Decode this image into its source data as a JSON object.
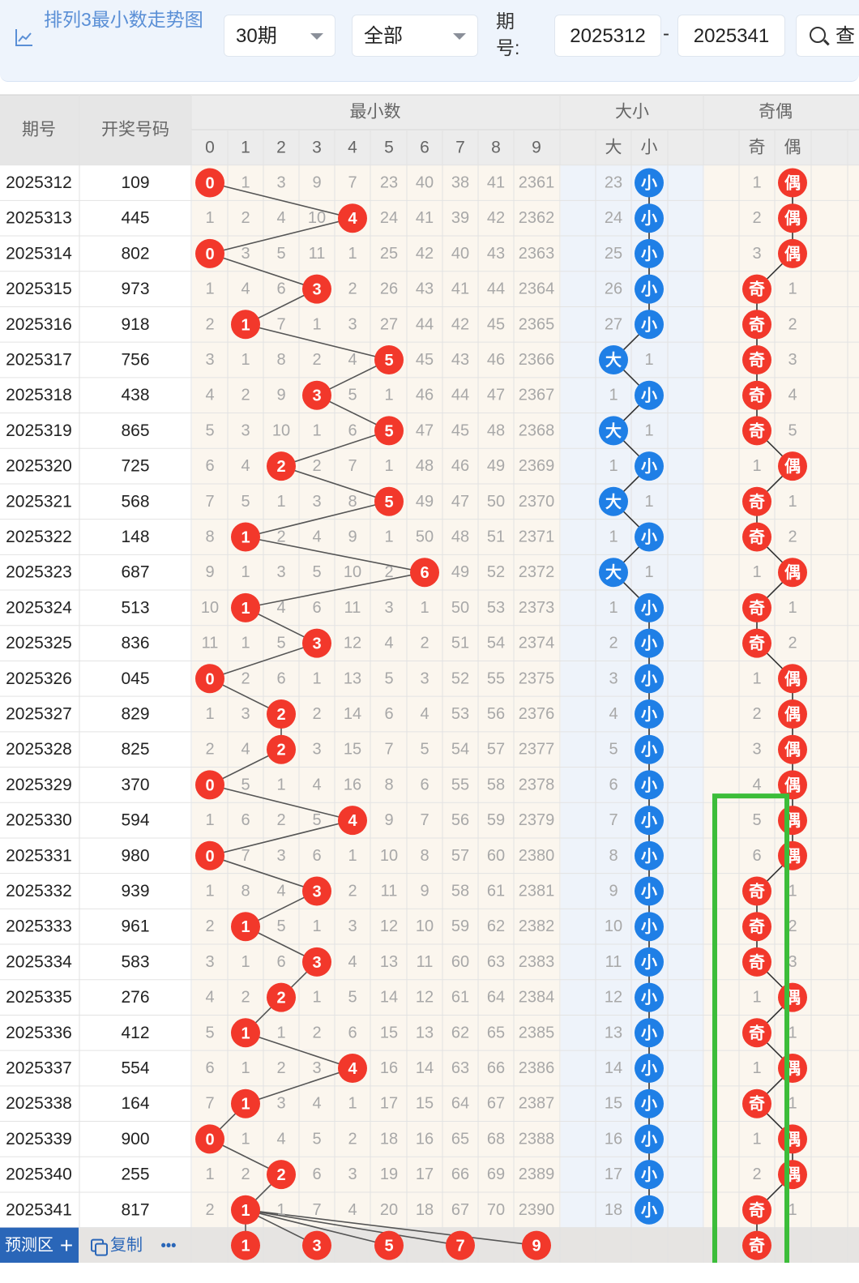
{
  "header": {
    "title": "排列3最小数走势图",
    "period_select": "30期",
    "scope_select": "全部",
    "issue_label": "期号:",
    "issue_from": "2025312",
    "issue_separator": "-",
    "issue_to": "2025341",
    "query_button": "查"
  },
  "table": {
    "col_issue": "期号",
    "col_draw": "开奖号码",
    "group_min": "最小数",
    "group_size": "大小",
    "group_parity": "奇偶",
    "min_digits": [
      "0",
      "1",
      "2",
      "3",
      "4",
      "5",
      "6",
      "7",
      "8",
      "9"
    ],
    "size_labels": [
      "大",
      "小"
    ],
    "parity_labels": [
      "奇",
      "偶"
    ]
  },
  "rows": [
    {
      "issue": "2025312",
      "draw": "109",
      "cells": [
        "0",
        "1",
        "3",
        "9",
        "7",
        "23",
        "40",
        "38",
        "41",
        "2361"
      ],
      "size": [
        "23",
        "小"
      ],
      "parity": [
        "1",
        "偶"
      ]
    },
    {
      "issue": "2025313",
      "draw": "445",
      "cells": [
        "1",
        "2",
        "4",
        "10",
        "4",
        "24",
        "41",
        "39",
        "42",
        "2362"
      ],
      "size": [
        "24",
        "小"
      ],
      "parity": [
        "2",
        "偶"
      ]
    },
    {
      "issue": "2025314",
      "draw": "802",
      "cells": [
        "0",
        "3",
        "5",
        "11",
        "1",
        "25",
        "42",
        "40",
        "43",
        "2363"
      ],
      "size": [
        "25",
        "小"
      ],
      "parity": [
        "3",
        "偶"
      ]
    },
    {
      "issue": "2025315",
      "draw": "973",
      "cells": [
        "1",
        "4",
        "6",
        "3",
        "2",
        "26",
        "43",
        "41",
        "44",
        "2364"
      ],
      "size": [
        "26",
        "小"
      ],
      "parity": [
        "奇",
        "1"
      ]
    },
    {
      "issue": "2025316",
      "draw": "918",
      "cells": [
        "2",
        "1",
        "7",
        "1",
        "3",
        "27",
        "44",
        "42",
        "45",
        "2365"
      ],
      "size": [
        "27",
        "小"
      ],
      "parity": [
        "奇",
        "2"
      ]
    },
    {
      "issue": "2025317",
      "draw": "756",
      "cells": [
        "3",
        "1",
        "8",
        "2",
        "4",
        "5",
        "45",
        "43",
        "46",
        "2366"
      ],
      "size": [
        "大",
        "1"
      ],
      "parity": [
        "奇",
        "3"
      ]
    },
    {
      "issue": "2025318",
      "draw": "438",
      "cells": [
        "4",
        "2",
        "9",
        "3",
        "5",
        "1",
        "46",
        "44",
        "47",
        "2367"
      ],
      "size": [
        "1",
        "小"
      ],
      "parity": [
        "奇",
        "4"
      ]
    },
    {
      "issue": "2025319",
      "draw": "865",
      "cells": [
        "5",
        "3",
        "10",
        "1",
        "6",
        "5",
        "47",
        "45",
        "48",
        "2368"
      ],
      "size": [
        "大",
        "1"
      ],
      "parity": [
        "奇",
        "5"
      ]
    },
    {
      "issue": "2025320",
      "draw": "725",
      "cells": [
        "6",
        "4",
        "2",
        "2",
        "7",
        "1",
        "48",
        "46",
        "49",
        "2369"
      ],
      "size": [
        "1",
        "小"
      ],
      "parity": [
        "1",
        "偶"
      ]
    },
    {
      "issue": "2025321",
      "draw": "568",
      "cells": [
        "7",
        "5",
        "1",
        "3",
        "8",
        "5",
        "49",
        "47",
        "50",
        "2370"
      ],
      "size": [
        "大",
        "1"
      ],
      "parity": [
        "奇",
        "1"
      ]
    },
    {
      "issue": "2025322",
      "draw": "148",
      "cells": [
        "8",
        "1",
        "2",
        "4",
        "9",
        "1",
        "50",
        "48",
        "51",
        "2371"
      ],
      "size": [
        "1",
        "小"
      ],
      "parity": [
        "奇",
        "2"
      ]
    },
    {
      "issue": "2025323",
      "draw": "687",
      "cells": [
        "9",
        "1",
        "3",
        "5",
        "10",
        "2",
        "6",
        "49",
        "52",
        "2372"
      ],
      "size": [
        "大",
        "1"
      ],
      "parity": [
        "1",
        "偶"
      ]
    },
    {
      "issue": "2025324",
      "draw": "513",
      "cells": [
        "10",
        "1",
        "4",
        "6",
        "11",
        "3",
        "1",
        "50",
        "53",
        "2373"
      ],
      "size": [
        "1",
        "小"
      ],
      "parity": [
        "奇",
        "1"
      ]
    },
    {
      "issue": "2025325",
      "draw": "836",
      "cells": [
        "11",
        "1",
        "5",
        "3",
        "12",
        "4",
        "2",
        "51",
        "54",
        "2374"
      ],
      "size": [
        "2",
        "小"
      ],
      "parity": [
        "奇",
        "2"
      ]
    },
    {
      "issue": "2025326",
      "draw": "045",
      "cells": [
        "0",
        "2",
        "6",
        "1",
        "13",
        "5",
        "3",
        "52",
        "55",
        "2375"
      ],
      "size": [
        "3",
        "小"
      ],
      "parity": [
        "1",
        "偶"
      ]
    },
    {
      "issue": "2025327",
      "draw": "829",
      "cells": [
        "1",
        "3",
        "2",
        "2",
        "14",
        "6",
        "4",
        "53",
        "56",
        "2376"
      ],
      "size": [
        "4",
        "小"
      ],
      "parity": [
        "2",
        "偶"
      ]
    },
    {
      "issue": "2025328",
      "draw": "825",
      "cells": [
        "2",
        "4",
        "2",
        "3",
        "15",
        "7",
        "5",
        "54",
        "57",
        "2377"
      ],
      "size": [
        "5",
        "小"
      ],
      "parity": [
        "3",
        "偶"
      ]
    },
    {
      "issue": "2025329",
      "draw": "370",
      "cells": [
        "0",
        "5",
        "1",
        "4",
        "16",
        "8",
        "6",
        "55",
        "58",
        "2378"
      ],
      "size": [
        "6",
        "小"
      ],
      "parity": [
        "4",
        "偶"
      ]
    },
    {
      "issue": "2025330",
      "draw": "594",
      "cells": [
        "1",
        "6",
        "2",
        "5",
        "4",
        "9",
        "7",
        "56",
        "59",
        "2379"
      ],
      "size": [
        "7",
        "小"
      ],
      "parity": [
        "5",
        "偶"
      ]
    },
    {
      "issue": "2025331",
      "draw": "980",
      "cells": [
        "0",
        "7",
        "3",
        "6",
        "1",
        "10",
        "8",
        "57",
        "60",
        "2380"
      ],
      "size": [
        "8",
        "小"
      ],
      "parity": [
        "6",
        "偶"
      ]
    },
    {
      "issue": "2025332",
      "draw": "939",
      "cells": [
        "1",
        "8",
        "4",
        "3",
        "2",
        "11",
        "9",
        "58",
        "61",
        "2381"
      ],
      "size": [
        "9",
        "小"
      ],
      "parity": [
        "奇",
        "1"
      ]
    },
    {
      "issue": "2025333",
      "draw": "961",
      "cells": [
        "2",
        "1",
        "5",
        "1",
        "3",
        "12",
        "10",
        "59",
        "62",
        "2382"
      ],
      "size": [
        "10",
        "小"
      ],
      "parity": [
        "奇",
        "2"
      ]
    },
    {
      "issue": "2025334",
      "draw": "583",
      "cells": [
        "3",
        "1",
        "6",
        "3",
        "4",
        "13",
        "11",
        "60",
        "63",
        "2383"
      ],
      "size": [
        "11",
        "小"
      ],
      "parity": [
        "奇",
        "3"
      ]
    },
    {
      "issue": "2025335",
      "draw": "276",
      "cells": [
        "4",
        "2",
        "2",
        "1",
        "5",
        "14",
        "12",
        "61",
        "64",
        "2384"
      ],
      "size": [
        "12",
        "小"
      ],
      "parity": [
        "1",
        "偶"
      ]
    },
    {
      "issue": "2025336",
      "draw": "412",
      "cells": [
        "5",
        "1",
        "1",
        "2",
        "6",
        "15",
        "13",
        "62",
        "65",
        "2385"
      ],
      "size": [
        "13",
        "小"
      ],
      "parity": [
        "奇",
        "1"
      ]
    },
    {
      "issue": "2025337",
      "draw": "554",
      "cells": [
        "6",
        "1",
        "2",
        "3",
        "4",
        "16",
        "14",
        "63",
        "66",
        "2386"
      ],
      "size": [
        "14",
        "小"
      ],
      "parity": [
        "1",
        "偶"
      ]
    },
    {
      "issue": "2025338",
      "draw": "164",
      "cells": [
        "7",
        "1",
        "3",
        "4",
        "1",
        "17",
        "15",
        "64",
        "67",
        "2387"
      ],
      "size": [
        "15",
        "小"
      ],
      "parity": [
        "奇",
        "1"
      ]
    },
    {
      "issue": "2025339",
      "draw": "900",
      "cells": [
        "0",
        "1",
        "4",
        "5",
        "2",
        "18",
        "16",
        "65",
        "68",
        "2388"
      ],
      "size": [
        "16",
        "小"
      ],
      "parity": [
        "1",
        "偶"
      ]
    },
    {
      "issue": "2025340",
      "draw": "255",
      "cells": [
        "1",
        "2",
        "2",
        "6",
        "3",
        "19",
        "17",
        "66",
        "69",
        "2389"
      ],
      "size": [
        "17",
        "小"
      ],
      "parity": [
        "2",
        "偶"
      ]
    },
    {
      "issue": "2025341",
      "draw": "817",
      "cells": [
        "2",
        "1",
        "1",
        "7",
        "4",
        "20",
        "18",
        "67",
        "70",
        "2390"
      ],
      "size": [
        "18",
        "小"
      ],
      "parity": [
        "奇",
        "1"
      ]
    }
  ],
  "hits": [
    0,
    4,
    0,
    3,
    1,
    5,
    3,
    5,
    2,
    5,
    1,
    6,
    1,
    3,
    0,
    2,
    2,
    0,
    4,
    0,
    3,
    1,
    3,
    2,
    1,
    4,
    1,
    0,
    2,
    1
  ],
  "size_hits": [
    "小",
    "小",
    "小",
    "小",
    "小",
    "大",
    "小",
    "大",
    "小",
    "大",
    "小",
    "大",
    "小",
    "小",
    "小",
    "小",
    "小",
    "小",
    "小",
    "小",
    "小",
    "小",
    "小",
    "小",
    "小",
    "小",
    "小",
    "小",
    "小",
    "小"
  ],
  "parity_hits": [
    "偶",
    "偶",
    "偶",
    "奇",
    "奇",
    "奇",
    "奇",
    "奇",
    "偶",
    "奇",
    "奇",
    "偶",
    "奇",
    "奇",
    "偶",
    "偶",
    "偶",
    "偶",
    "偶",
    "偶",
    "奇",
    "奇",
    "奇",
    "偶",
    "奇",
    "偶",
    "奇",
    "偶",
    "偶",
    "奇"
  ],
  "predict": {
    "label": "预测区",
    "plus": "+",
    "copy_label": "复制",
    "more": "•••",
    "picks": [
      "1",
      "3",
      "5",
      "7",
      "9"
    ],
    "parity_pick": "奇"
  },
  "colors": {
    "ball_red": "#f2382b",
    "ball_blue": "#1f7fe6",
    "highlight_green": "#3cbd3a",
    "header_bg": "#eef4fc",
    "title_blue": "#5a8fd6",
    "predict_label_bg": "#2a66b8"
  },
  "icons": [
    "chart-icon",
    "dropdown-arrow-icon",
    "search-icon",
    "copy-icon"
  ]
}
